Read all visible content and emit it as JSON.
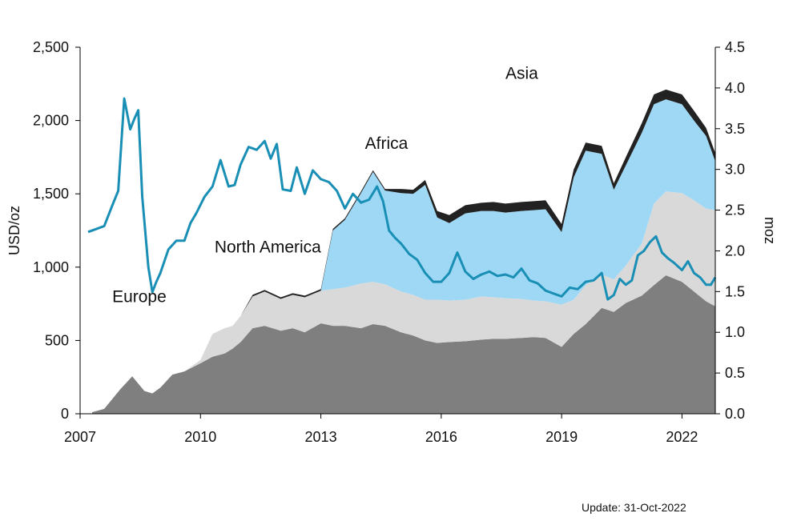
{
  "chart_data": {
    "type": "area",
    "colors": {
      "Europe": "#7f7f7f",
      "North America": "#d9d9d9",
      "Africa": "#9ed8f5",
      "Asia": "#222222",
      "price_line": "#1a8fb5",
      "axis": "#000000"
    },
    "x_axis": {
      "min": 2007,
      "max": 2022.83,
      "ticks": [
        "2007",
        "2010",
        "2013",
        "2016",
        "2019",
        "2022"
      ]
    },
    "y_left": {
      "label": "USD/oz",
      "min": 0,
      "max": 2500,
      "ticks": [
        "0",
        "500",
        "1,000",
        "1,500",
        "2,000",
        "2,500"
      ]
    },
    "y_right": {
      "label": "moz",
      "min": 0,
      "max": 4.5,
      "ticks": [
        "0.0",
        "0.5",
        "1.0",
        "1.5",
        "2.0",
        "2.5",
        "3.0",
        "3.5",
        "4.0",
        "4.5"
      ]
    },
    "area_labels": [
      "Europe",
      "North America",
      "Africa",
      "Asia"
    ],
    "stacked_series_moz": {
      "x": [
        2007.3,
        2007.6,
        2008.0,
        2008.3,
        2008.6,
        2008.8,
        2009.0,
        2009.3,
        2009.6,
        2010.0,
        2010.3,
        2010.6,
        2010.8,
        2011.0,
        2011.3,
        2011.6,
        2012.0,
        2012.3,
        2012.6,
        2013.0,
        2013.3,
        2013.6,
        2014.0,
        2014.3,
        2014.6,
        2015.0,
        2015.3,
        2015.6,
        2015.9,
        2016.2,
        2016.6,
        2017.0,
        2017.3,
        2017.6,
        2018.0,
        2018.3,
        2018.6,
        2019.0,
        2019.3,
        2019.6,
        2020.0,
        2020.3,
        2020.6,
        2021.0,
        2021.3,
        2021.6,
        2022.0,
        2022.3,
        2022.6,
        2022.83
      ],
      "Europe": [
        0.02,
        0.06,
        0.3,
        0.46,
        0.28,
        0.25,
        0.32,
        0.48,
        0.52,
        0.62,
        0.7,
        0.74,
        0.8,
        0.88,
        1.05,
        1.08,
        1.02,
        1.05,
        1.0,
        1.11,
        1.08,
        1.08,
        1.05,
        1.1,
        1.08,
        1.0,
        0.96,
        0.9,
        0.87,
        0.88,
        0.89,
        0.91,
        0.92,
        0.92,
        0.93,
        0.94,
        0.93,
        0.82,
        0.98,
        1.1,
        1.3,
        1.25,
        1.36,
        1.45,
        1.58,
        1.7,
        1.62,
        1.5,
        1.38,
        1.32
      ],
      "North America": [
        0.0,
        0.0,
        0.0,
        0.0,
        0.0,
        0.0,
        0.0,
        0.0,
        0.0,
        0.04,
        0.28,
        0.31,
        0.28,
        0.32,
        0.39,
        0.42,
        0.39,
        0.41,
        0.43,
        0.4,
        0.45,
        0.47,
        0.55,
        0.52,
        0.51,
        0.5,
        0.5,
        0.5,
        0.53,
        0.51,
        0.51,
        0.53,
        0.51,
        0.5,
        0.48,
        0.45,
        0.45,
        0.52,
        0.42,
        0.48,
        0.41,
        0.4,
        0.46,
        0.64,
        1.0,
        1.03,
        1.09,
        1.12,
        1.14,
        1.18
      ],
      "Africa": [
        0.0,
        0.0,
        0.0,
        0.0,
        0.0,
        0.0,
        0.0,
        0.0,
        0.0,
        0.0,
        0.0,
        0.0,
        0.0,
        0.0,
        0.0,
        0.0,
        0.0,
        0.0,
        0.0,
        0.0,
        0.72,
        0.83,
        1.11,
        1.35,
        1.15,
        1.21,
        1.24,
        1.41,
        1.01,
        0.95,
        1.06,
        1.05,
        1.06,
        1.05,
        1.08,
        1.11,
        1.13,
        0.89,
        1.5,
        1.65,
        1.48,
        1.1,
        1.23,
        1.36,
        1.22,
        1.13,
        1.09,
        0.98,
        0.89,
        0.6
      ],
      "Asia": [
        0.0,
        0.0,
        0.0,
        0.0,
        0.0,
        0.0,
        0.0,
        0.0,
        0.0,
        0.0,
        0.0,
        0.0,
        0.0,
        0.0,
        0.02,
        0.02,
        0.02,
        0.02,
        0.02,
        0.02,
        0.02,
        0.02,
        0.02,
        0.02,
        0.02,
        0.05,
        0.05,
        0.06,
        0.08,
        0.1,
        0.1,
        0.1,
        0.11,
        0.11,
        0.11,
        0.11,
        0.11,
        0.1,
        0.1,
        0.1,
        0.1,
        0.08,
        0.1,
        0.12,
        0.12,
        0.12,
        0.12,
        0.12,
        0.1,
        0.1
      ]
    },
    "price_usd_oz": {
      "x": [
        2007.2,
        2007.4,
        2007.6,
        2007.8,
        2007.95,
        2008.1,
        2008.25,
        2008.35,
        2008.45,
        2008.55,
        2008.7,
        2008.8,
        2008.9,
        2009.0,
        2009.2,
        2009.4,
        2009.6,
        2009.75,
        2009.9,
        2010.1,
        2010.3,
        2010.5,
        2010.7,
        2010.85,
        2011.0,
        2011.2,
        2011.4,
        2011.6,
        2011.75,
        2011.9,
        2012.05,
        2012.25,
        2012.4,
        2012.6,
        2012.8,
        2013.0,
        2013.2,
        2013.4,
        2013.6,
        2013.8,
        2014.0,
        2014.2,
        2014.4,
        2014.55,
        2014.7,
        2014.85,
        2015.0,
        2015.2,
        2015.4,
        2015.6,
        2015.8,
        2016.0,
        2016.2,
        2016.4,
        2016.6,
        2016.8,
        2017.0,
        2017.2,
        2017.4,
        2017.6,
        2017.8,
        2018.0,
        2018.2,
        2018.4,
        2018.6,
        2018.8,
        2019.0,
        2019.2,
        2019.4,
        2019.6,
        2019.8,
        2020.0,
        2020.15,
        2020.3,
        2020.45,
        2020.6,
        2020.75,
        2020.9,
        2021.05,
        2021.2,
        2021.35,
        2021.5,
        2021.65,
        2021.8,
        2022.0,
        2022.15,
        2022.3,
        2022.45,
        2022.6,
        2022.72,
        2022.83
      ],
      "y": [
        1240,
        1260,
        1280,
        1420,
        1520,
        2150,
        1940,
        2010,
        2070,
        1480,
        1000,
        830,
        900,
        960,
        1120,
        1180,
        1180,
        1300,
        1370,
        1480,
        1550,
        1730,
        1550,
        1560,
        1700,
        1820,
        1800,
        1860,
        1740,
        1840,
        1530,
        1520,
        1680,
        1500,
        1660,
        1600,
        1580,
        1520,
        1400,
        1500,
        1440,
        1460,
        1550,
        1450,
        1250,
        1200,
        1160,
        1090,
        1050,
        960,
        900,
        900,
        960,
        1100,
        970,
        920,
        950,
        970,
        940,
        950,
        930,
        990,
        910,
        890,
        840,
        820,
        800,
        860,
        850,
        900,
        910,
        960,
        780,
        810,
        920,
        880,
        910,
        1080,
        1110,
        1170,
        1210,
        1100,
        1060,
        1030,
        980,
        1040,
        960,
        930,
        880,
        880,
        930
      ]
    }
  },
  "footer": {
    "update_text": "Update: 31-Oct-2022"
  }
}
